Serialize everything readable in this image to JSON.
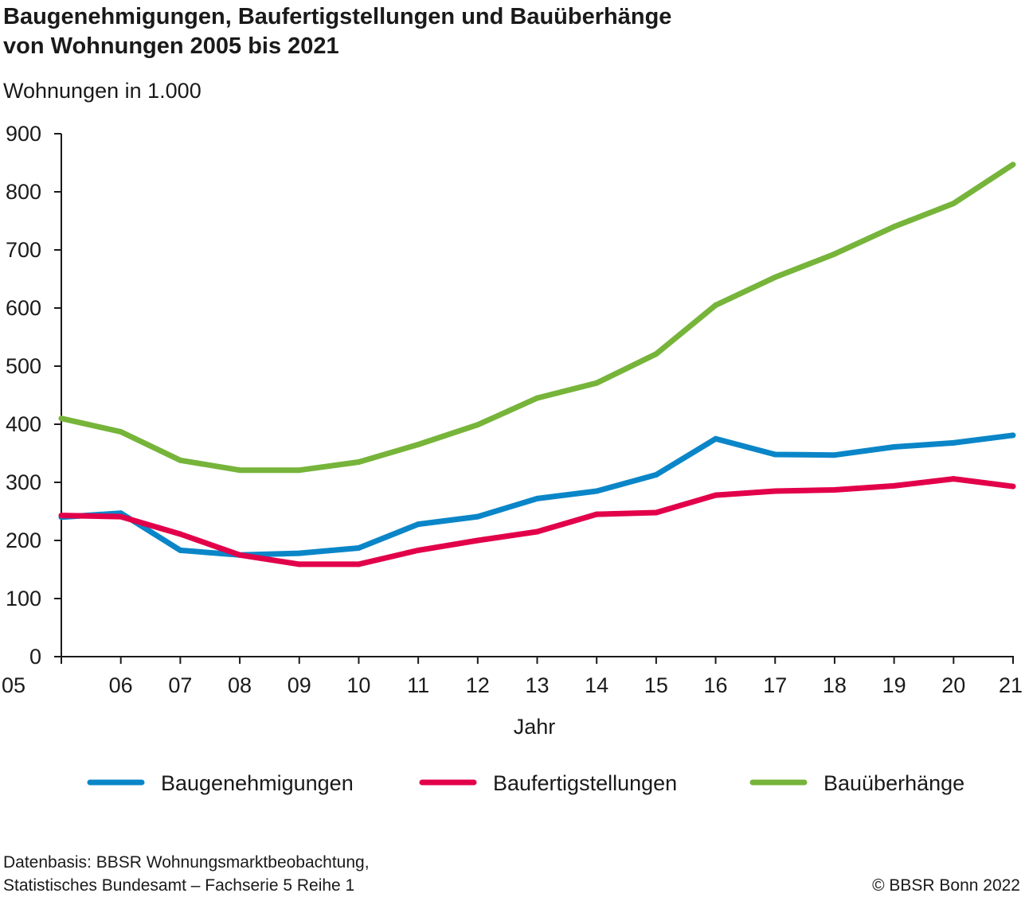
{
  "header": {
    "title_line1": "Baugenehmigungen, Baufertigstellungen und Bauüberhänge",
    "title_line2": "von Wohnungen 2005 bis 2021",
    "unit_label": "Wohnungen in 1.000"
  },
  "footer": {
    "source_line1": "Datenbasis: BBSR Wohnungsmarktbeobachtung,",
    "source_line2": "Statistisches Bundesamt – Fachserie 5 Reihe 1",
    "copyright": "© BBSR Bonn 2022"
  },
  "chart_data": {
    "type": "line",
    "title": "Baugenehmigungen, Baufertigstellungen und Bauüberhänge von Wohnungen 2005 bis 2021",
    "xlabel": "Jahr",
    "ylabel": "Wohnungen in 1.000",
    "categories": [
      "05",
      "06",
      "07",
      "08",
      "09",
      "10",
      "11",
      "12",
      "13",
      "14",
      "15",
      "16",
      "17",
      "18",
      "19",
      "20",
      "21"
    ],
    "yticks": [
      0,
      100,
      200,
      300,
      400,
      500,
      600,
      700,
      800,
      900
    ],
    "ylim": [
      0,
      900
    ],
    "grid": false,
    "legend_position": "bottom",
    "series": [
      {
        "name": "Baugenehmigungen",
        "color": "#0a86c8",
        "values": [
          240,
          247,
          183,
          175,
          178,
          187,
          228,
          241,
          272,
          285,
          313,
          375,
          348,
          347,
          361,
          368,
          381
        ]
      },
      {
        "name": "Baufertigstellungen",
        "color": "#e2004a",
        "values": [
          243,
          241,
          211,
          175,
          159,
          159,
          183,
          200,
          215,
          245,
          248,
          278,
          285,
          287,
          294,
          306,
          293
        ]
      },
      {
        "name": "Bauüberhänge",
        "color": "#76b43a",
        "values": [
          410,
          387,
          338,
          321,
          321,
          335,
          365,
          399,
          445,
          471,
          521,
          605,
          653,
          693,
          740,
          780,
          847
        ]
      }
    ]
  }
}
